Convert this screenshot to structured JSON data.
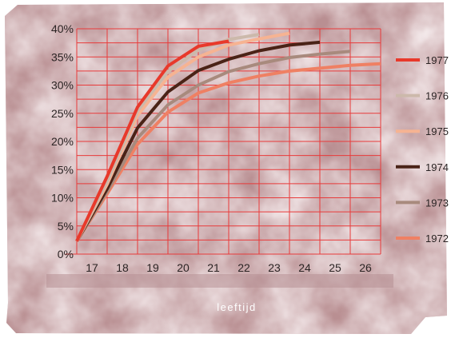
{
  "chart_data": {
    "type": "line",
    "xlabel": "leeftijd",
    "ylabel": "",
    "x_ticks": [
      "17",
      "18",
      "19",
      "20",
      "21",
      "22",
      "23",
      "24",
      "25",
      "26"
    ],
    "y_ticks": [
      "0%",
      "5%",
      "10%",
      "15%",
      "20%",
      "25%",
      "30%",
      "35%",
      "40%"
    ],
    "xlim": [
      16.5,
      26.5
    ],
    "ylim": [
      0,
      40
    ],
    "grid": true,
    "legend_position": "right",
    "series": [
      {
        "name": "1972",
        "color": "#ef8063",
        "x": [
          16.5,
          17.5,
          18.5,
          19.5,
          20.5,
          21.5,
          22.5,
          23.5,
          24.5,
          25.5,
          26.5
        ],
        "y": [
          2.3,
          10.7,
          19.5,
          25.2,
          28.6,
          30.4,
          31.6,
          32.5,
          33.0,
          33.5,
          33.8
        ]
      },
      {
        "name": "1973",
        "color": "#a88a7d",
        "x": [
          16.5,
          17.5,
          18.5,
          19.5,
          20.5,
          21.5,
          22.5,
          23.5,
          24.5,
          25.5
        ],
        "y": [
          2.3,
          11.1,
          20.6,
          26.5,
          30.0,
          32.4,
          33.8,
          34.9,
          35.5,
          36.0
        ]
      },
      {
        "name": "1974",
        "color": "#4a2317",
        "x": [
          16.5,
          17.5,
          18.5,
          19.5,
          20.5,
          21.5,
          22.5,
          23.5,
          24.5
        ],
        "y": [
          2.3,
          11.6,
          22.4,
          28.8,
          32.6,
          34.6,
          36.1,
          37.1,
          37.6
        ]
      },
      {
        "name": "1975",
        "color": "#f6b392",
        "x": [
          16.5,
          17.5,
          18.5,
          19.5,
          20.5,
          21.5,
          22.5,
          23.5
        ],
        "y": [
          2.3,
          12.4,
          24.6,
          31.4,
          35.0,
          37.1,
          38.2,
          39.2
        ]
      },
      {
        "name": "1976",
        "color": "#ccb9ab",
        "x": [
          16.5,
          17.5,
          18.5,
          19.5,
          20.5,
          21.5,
          22.5
        ],
        "y": [
          2.3,
          12.9,
          25.4,
          32.4,
          36.2,
          38.1,
          39.0
        ]
      },
      {
        "name": "1977",
        "color": "#e8392b",
        "x": [
          16.5,
          17.5,
          18.5,
          19.5,
          20.5,
          21.5
        ],
        "y": [
          2.3,
          13.8,
          26.1,
          33.4,
          36.9,
          37.8
        ]
      }
    ]
  }
}
